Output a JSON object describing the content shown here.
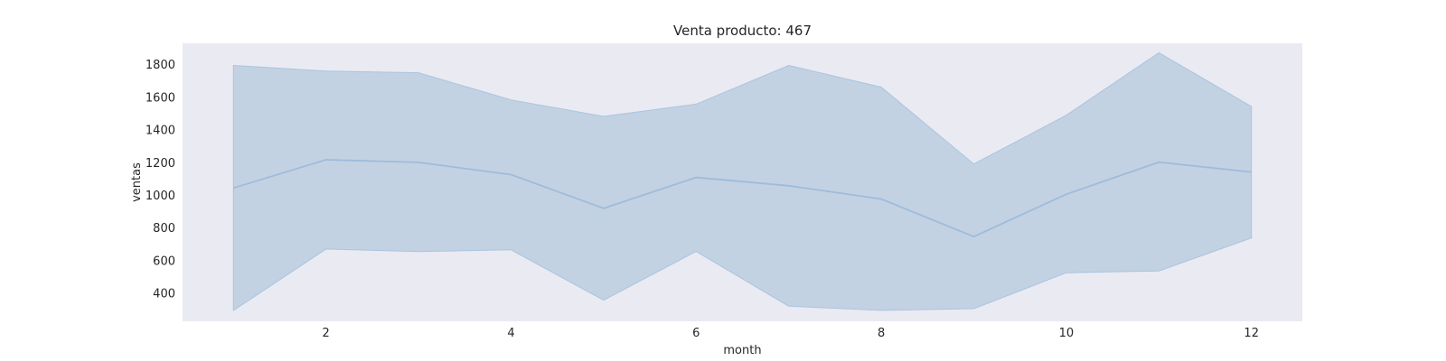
{
  "chart_data": {
    "type": "line",
    "title": "Venta producto: 467",
    "xlabel": "month",
    "ylabel": "ventas",
    "xlim": [
      0.45,
      12.55
    ],
    "ylim": [
      230,
      1930
    ],
    "x_ticks": [
      2,
      4,
      6,
      8,
      10,
      12
    ],
    "y_ticks": [
      400,
      600,
      800,
      1000,
      1200,
      1400,
      1600,
      1800
    ],
    "grid": false,
    "colors": {
      "background": "#eaeaf2",
      "line": "#9ebcda",
      "band_fill": "#c2d2e3",
      "band_edge": "#aac4de"
    },
    "x": [
      1,
      2,
      3,
      4,
      5,
      6,
      7,
      8,
      9,
      10,
      11,
      12
    ],
    "series": [
      {
        "values": [
          1045,
          1218,
          1202,
          1127,
          921,
          1110,
          1059,
          978,
          748,
          1007,
          1203,
          1143
        ],
        "band_upper": [
          1795,
          1760,
          1750,
          1584,
          1483,
          1558,
          1795,
          1662,
          1192,
          1490,
          1872,
          1543
        ],
        "band_lower": [
          297,
          672,
          656,
          667,
          359,
          657,
          323,
          297,
          307,
          527,
          538,
          740
        ]
      }
    ]
  }
}
